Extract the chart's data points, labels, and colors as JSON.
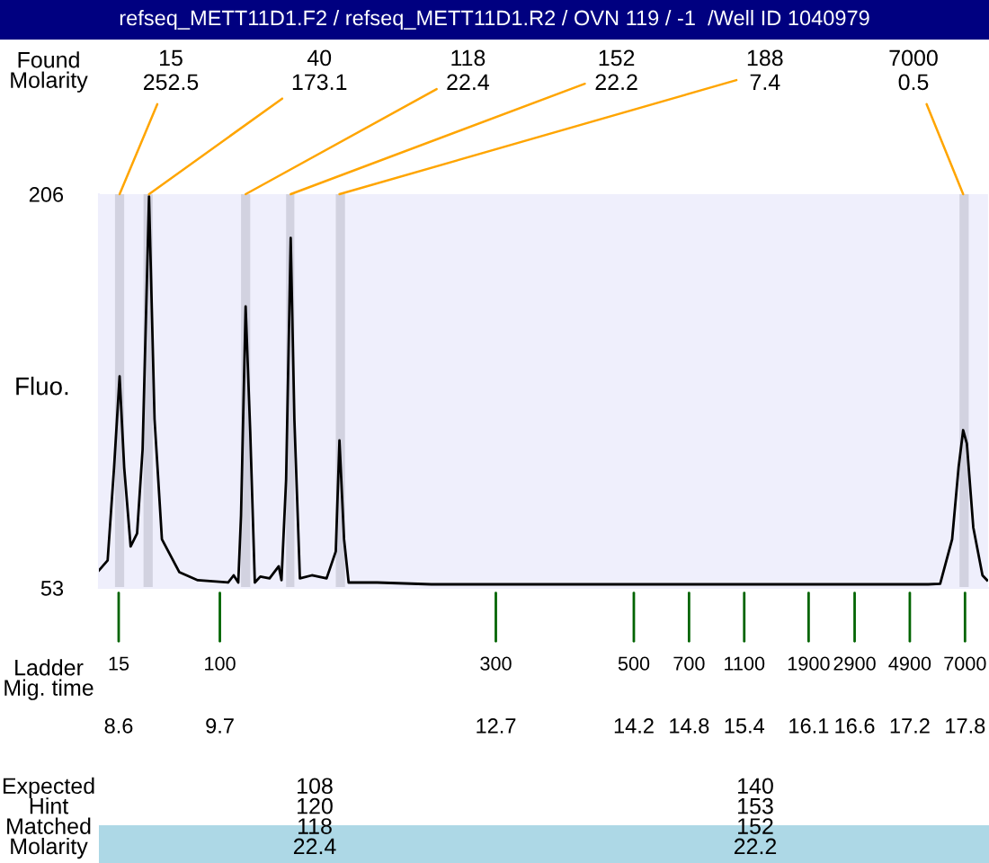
{
  "chart_data": {
    "type": "line",
    "title": "refseq_METT11D1.F2 / refseq_METT11D1.R2 / OVN 119 / -1  /Well ID 1040979",
    "ylabel": "Fluo.",
    "x": [
      8.385,
      8.48,
      8.55,
      8.61,
      8.66,
      8.73,
      8.8,
      8.86,
      8.93,
      8.99,
      9.07,
      9.26,
      9.46,
      9.79,
      9.85,
      9.9,
      9.93,
      9.98,
      10.03,
      10.08,
      10.14,
      10.24,
      10.34,
      10.37,
      10.42,
      10.47,
      10.51,
      10.57,
      10.7,
      10.86,
      10.96,
      11.0,
      11.05,
      11.1,
      11.41,
      12.0,
      14.0,
      16.0,
      17.4,
      17.53,
      17.66,
      17.73,
      17.78,
      17.82,
      17.89,
      17.99,
      18.04
    ],
    "series": [
      {
        "color": "#000000",
        "values": [
          59.8,
          63.7,
          99.8,
          135.2,
          99.8,
          69.1,
          74.2,
          106.8,
          205.1,
          118.5,
          71.9,
          59.1,
          56.0,
          55.1,
          57.9,
          55.1,
          81.2,
          162.4,
          113.8,
          55.1,
          57.4,
          56.7,
          61.4,
          56.0,
          95.1,
          189.0,
          118.5,
          56.7,
          57.9,
          56.7,
          67.2,
          110.3,
          71.9,
          55.1,
          55.1,
          54.4,
          54.4,
          54.4,
          54.4,
          54.6,
          71.9,
          99.8,
          114.3,
          109.1,
          76.5,
          57.9,
          56.0
        ]
      }
    ],
    "xlim": [
      8.385,
      18.05
    ],
    "ylim": [
      53,
      206
    ],
    "xticks": [
      8.6,
      9.7,
      12.7,
      14.2,
      14.8,
      15.4,
      16.1,
      16.6,
      17.2,
      17.8
    ],
    "yticks": [
      53,
      206
    ],
    "bands": [
      {
        "axis": "x",
        "from": 8.56,
        "to": 8.66,
        "color": "#d2d2e0"
      },
      {
        "axis": "x",
        "from": 8.87,
        "to": 8.97,
        "color": "#d2d2e0"
      },
      {
        "axis": "x",
        "from": 9.93,
        "to": 10.03,
        "color": "#d2d2e0"
      },
      {
        "axis": "x",
        "from": 10.42,
        "to": 10.51,
        "color": "#d2d2e0"
      },
      {
        "axis": "x",
        "from": 10.96,
        "to": 11.06,
        "color": "#d2d2e0"
      },
      {
        "axis": "x",
        "from": 17.74,
        "to": 17.84,
        "color": "#d2d2e0"
      }
    ],
    "annotations": [
      "Found\nMolarity",
      "Ladder\nMig. time",
      "Expected\nHint\nMatched\nMolarity",
      {
        "text": "15\n252.5",
        "x": 8.61,
        "y": 206
      },
      {
        "text": "40\n173.1",
        "x": 8.93,
        "y": 206
      },
      {
        "text": "118\n22.4",
        "x": 9.98,
        "y": 206
      },
      {
        "text": "152\n22.2",
        "x": 10.47,
        "y": 206
      },
      {
        "text": "188\n7.4",
        "x": 11.0,
        "y": 206
      },
      {
        "text": "7000\n0.5",
        "x": 17.78,
        "y": 206
      },
      {
        "text": "15",
        "x": 8.6,
        "y": 53
      },
      {
        "text": "100",
        "x": 9.7,
        "y": 53
      },
      {
        "text": "300",
        "x": 12.7,
        "y": 53
      },
      {
        "text": "500",
        "x": 14.2,
        "y": 53
      },
      {
        "text": "700",
        "x": 14.8,
        "y": 53
      },
      {
        "text": "1100",
        "x": 15.4,
        "y": 53
      },
      {
        "text": "1900",
        "x": 16.1,
        "y": 53
      },
      {
        "text": "2900",
        "x": 16.6,
        "y": 53
      },
      {
        "text": "4900",
        "x": 17.2,
        "y": 53
      },
      {
        "text": "7000",
        "x": 17.8,
        "y": 53
      },
      "108\n120\n118\n22.4",
      "140\n153\n152\n22.2"
    ],
    "grid": false,
    "legend": false,
    "marker": "none",
    "line_style": "solid"
  }
}
